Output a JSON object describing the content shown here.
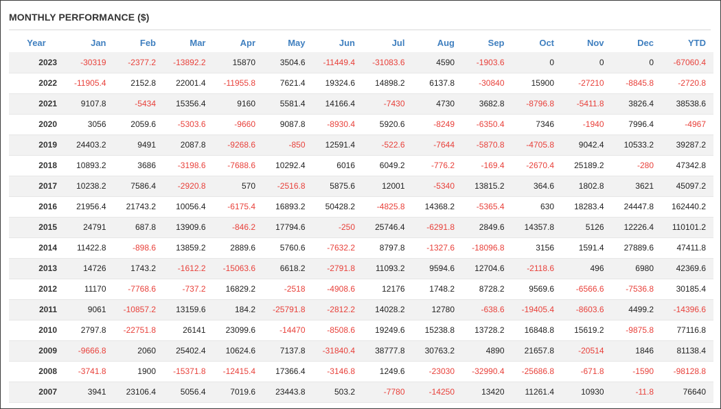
{
  "title": "MONTHLY PERFORMANCE ($)",
  "colors": {
    "header": "#3f7fbf",
    "negative": "#e8403a",
    "stripe": "#f2f2f2"
  },
  "columns": [
    "Year",
    "Jan",
    "Feb",
    "Mar",
    "Apr",
    "May",
    "Jun",
    "Jul",
    "Aug",
    "Sep",
    "Oct",
    "Nov",
    "Dec",
    "YTD"
  ],
  "rows": [
    [
      "2023",
      "-30319",
      "-2377.2",
      "-13892.2",
      "15870",
      "3504.6",
      "-11449.4",
      "-31083.6",
      "4590",
      "-1903.6",
      "0",
      "0",
      "0",
      "-67060.4"
    ],
    [
      "2022",
      "-11905.4",
      "2152.8",
      "22001.4",
      "-11955.8",
      "7621.4",
      "19324.6",
      "14898.2",
      "6137.8",
      "-30840",
      "15900",
      "-27210",
      "-8845.8",
      "-2720.8"
    ],
    [
      "2021",
      "9107.8",
      "-5434",
      "15356.4",
      "9160",
      "5581.4",
      "14166.4",
      "-7430",
      "4730",
      "3682.8",
      "-8796.8",
      "-5411.8",
      "3826.4",
      "38538.6"
    ],
    [
      "2020",
      "3056",
      "2059.6",
      "-5303.6",
      "-9660",
      "9087.8",
      "-8930.4",
      "5920.6",
      "-8249",
      "-6350.4",
      "7346",
      "-1940",
      "7996.4",
      "-4967"
    ],
    [
      "2019",
      "24403.2",
      "9491",
      "2087.8",
      "-9268.6",
      "-850",
      "12591.4",
      "-522.6",
      "-7644",
      "-5870.8",
      "-4705.8",
      "9042.4",
      "10533.2",
      "39287.2"
    ],
    [
      "2018",
      "10893.2",
      "3686",
      "-3198.6",
      "-7688.6",
      "10292.4",
      "6016",
      "6049.2",
      "-776.2",
      "-169.4",
      "-2670.4",
      "25189.2",
      "-280",
      "47342.8"
    ],
    [
      "2017",
      "10238.2",
      "7586.4",
      "-2920.8",
      "570",
      "-2516.8",
      "5875.6",
      "12001",
      "-5340",
      "13815.2",
      "364.6",
      "1802.8",
      "3621",
      "45097.2"
    ],
    [
      "2016",
      "21956.4",
      "21743.2",
      "10056.4",
      "-6175.4",
      "16893.2",
      "50428.2",
      "-4825.8",
      "14368.2",
      "-5365.4",
      "630",
      "18283.4",
      "24447.8",
      "162440.2"
    ],
    [
      "2015",
      "24791",
      "687.8",
      "13909.6",
      "-846.2",
      "17794.6",
      "-250",
      "25746.4",
      "-6291.8",
      "2849.6",
      "14357.8",
      "5126",
      "12226.4",
      "110101.2"
    ],
    [
      "2014",
      "11422.8",
      "-898.6",
      "13859.2",
      "2889.6",
      "5760.6",
      "-7632.2",
      "8797.8",
      "-1327.6",
      "-18096.8",
      "3156",
      "1591.4",
      "27889.6",
      "47411.8"
    ],
    [
      "2013",
      "14726",
      "1743.2",
      "-1612.2",
      "-15063.6",
      "6618.2",
      "-2791.8",
      "11093.2",
      "9594.6",
      "12704.6",
      "-2118.6",
      "496",
      "6980",
      "42369.6"
    ],
    [
      "2012",
      "11170",
      "-7768.6",
      "-737.2",
      "16829.2",
      "-2518",
      "-4908.6",
      "12176",
      "1748.2",
      "8728.2",
      "9569.6",
      "-6566.6",
      "-7536.8",
      "30185.4"
    ],
    [
      "2011",
      "9061",
      "-10857.2",
      "13159.6",
      "184.2",
      "-25791.8",
      "-2812.2",
      "14028.2",
      "12780",
      "-638.6",
      "-19405.4",
      "-8603.6",
      "4499.2",
      "-14396.6"
    ],
    [
      "2010",
      "2797.8",
      "-22751.8",
      "26141",
      "23099.6",
      "-14470",
      "-8508.6",
      "19249.6",
      "15238.8",
      "13728.2",
      "16848.8",
      "15619.2",
      "-9875.8",
      "77116.8"
    ],
    [
      "2009",
      "-9666.8",
      "2060",
      "25402.4",
      "10624.6",
      "7137.8",
      "-31840.4",
      "38777.8",
      "30763.2",
      "4890",
      "21657.8",
      "-20514",
      "1846",
      "81138.4"
    ],
    [
      "2008",
      "-3741.8",
      "1900",
      "-15371.8",
      "-12415.4",
      "17366.4",
      "-3146.8",
      "1249.6",
      "-23030",
      "-32990.4",
      "-25686.8",
      "-671.8",
      "-1590",
      "-98128.8"
    ],
    [
      "2007",
      "3941",
      "23106.4",
      "5056.4",
      "7019.6",
      "23443.8",
      "503.2",
      "-7780",
      "-14250",
      "13420",
      "11261.4",
      "10930",
      "-11.8",
      "76640"
    ]
  ]
}
